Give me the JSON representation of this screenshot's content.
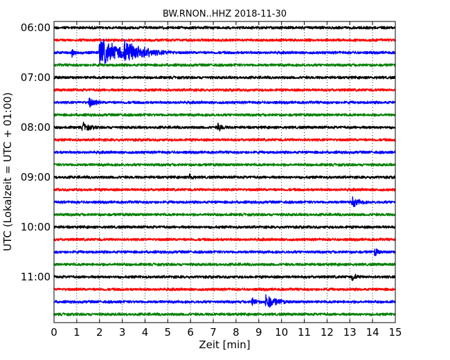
{
  "chart_data": {
    "type": "line",
    "title": "BW.RNON..HHZ 2018-11-30",
    "xlabel": "Zeit  [min]",
    "ylabel": "UTC (Lokalzeit = UTC + 01:00)",
    "xlim": [
      0,
      15
    ],
    "x_ticks": [
      "0",
      "1",
      "2",
      "3",
      "4",
      "5",
      "6",
      "7",
      "8",
      "9",
      "10",
      "11",
      "12",
      "13",
      "14",
      "15"
    ],
    "y_tick_labels": [
      "06:00",
      "07:00",
      "08:00",
      "09:00",
      "10:00",
      "11:00"
    ],
    "grid": "vertical dotted at each minute",
    "trace_interval_minutes": 15,
    "colors_cycle": [
      "#000000",
      "#ff0000",
      "#0000ff",
      "#008000"
    ],
    "series": [
      {
        "start": "06:00",
        "color": "#000000",
        "events": []
      },
      {
        "start": "06:15",
        "color": "#ff0000",
        "events": []
      },
      {
        "start": "06:30",
        "color": "#0000ff",
        "events": [
          {
            "t": 0.8,
            "amp": 0.35,
            "dur": 0.08
          },
          {
            "t": 2.0,
            "amp": 1.0,
            "dur": 0.9
          },
          {
            "t": 3.05,
            "amp": 0.55,
            "dur": 0.9
          }
        ]
      },
      {
        "start": "06:45",
        "color": "#008000",
        "events": []
      },
      {
        "start": "07:00",
        "color": "#000000",
        "events": []
      },
      {
        "start": "07:15",
        "color": "#ff0000",
        "events": []
      },
      {
        "start": "07:30",
        "color": "#0000ff",
        "events": [
          {
            "t": 1.55,
            "amp": 0.35,
            "dur": 0.2
          }
        ]
      },
      {
        "start": "07:45",
        "color": "#008000",
        "events": []
      },
      {
        "start": "08:00",
        "color": "#000000",
        "events": [
          {
            "t": 1.25,
            "amp": 0.3,
            "dur": 0.25
          },
          {
            "t": 7.2,
            "amp": 0.3,
            "dur": 0.15
          }
        ]
      },
      {
        "start": "08:15",
        "color": "#ff0000",
        "events": []
      },
      {
        "start": "08:30",
        "color": "#0000ff",
        "events": []
      },
      {
        "start": "08:45",
        "color": "#008000",
        "events": []
      },
      {
        "start": "09:00",
        "color": "#000000",
        "events": [
          {
            "t": 5.95,
            "amp": 0.3,
            "dur": 0.1
          }
        ]
      },
      {
        "start": "09:15",
        "color": "#ff0000",
        "events": []
      },
      {
        "start": "09:30",
        "color": "#0000ff",
        "events": [
          {
            "t": 13.1,
            "amp": 0.35,
            "dur": 0.25
          }
        ]
      },
      {
        "start": "09:45",
        "color": "#008000",
        "events": []
      },
      {
        "start": "10:00",
        "color": "#000000",
        "events": []
      },
      {
        "start": "10:15",
        "color": "#ff0000",
        "events": []
      },
      {
        "start": "10:30",
        "color": "#0000ff",
        "events": [
          {
            "t": 14.1,
            "amp": 0.3,
            "dur": 0.1
          }
        ]
      },
      {
        "start": "10:45",
        "color": "#008000",
        "events": []
      },
      {
        "start": "11:00",
        "color": "#000000",
        "events": [
          {
            "t": 13.1,
            "amp": 0.25,
            "dur": 0.15
          }
        ]
      },
      {
        "start": "11:15",
        "color": "#ff0000",
        "events": []
      },
      {
        "start": "11:30",
        "color": "#0000ff",
        "events": [
          {
            "t": 8.7,
            "amp": 0.3,
            "dur": 0.15
          },
          {
            "t": 9.3,
            "amp": 0.55,
            "dur": 0.35
          }
        ]
      },
      {
        "start": "11:45",
        "color": "#008000",
        "events": []
      }
    ]
  }
}
